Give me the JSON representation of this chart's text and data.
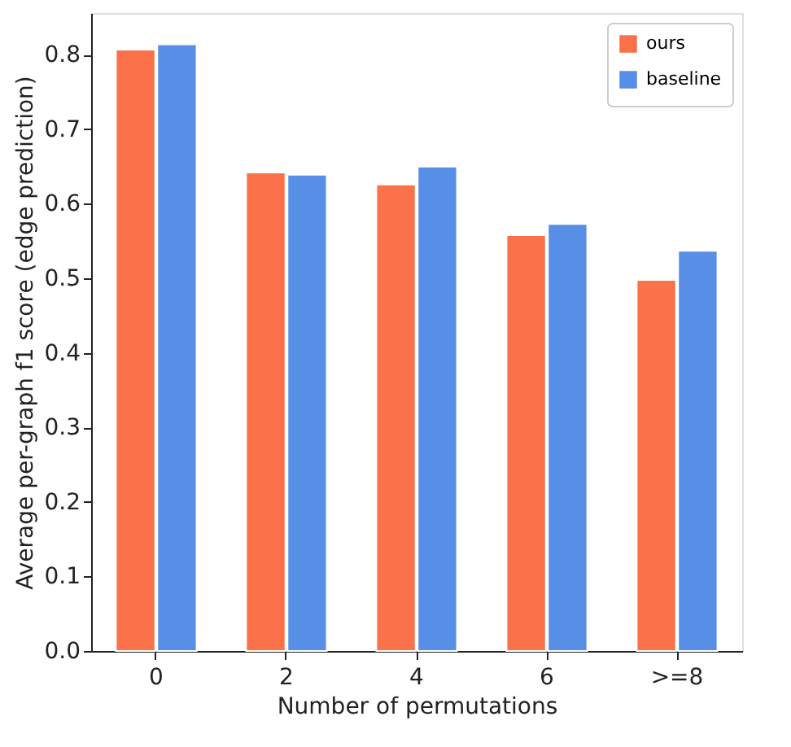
{
  "chart_data": {
    "type": "bar",
    "xlabel": "Number of permutations",
    "ylabel": "Average per-graph f1 score (edge prediction)",
    "categories": [
      "0",
      "2",
      "4",
      "6",
      ">=8"
    ],
    "series": [
      {
        "name": "ours",
        "color": "#fb714a",
        "values": [
          0.807,
          0.642,
          0.626,
          0.558,
          0.498
        ]
      },
      {
        "name": "baseline",
        "color": "#578ee6",
        "values": [
          0.814,
          0.639,
          0.65,
          0.573,
          0.537
        ]
      }
    ],
    "ylim": [
      0,
      0.856
    ],
    "yticks": [
      {
        "value": 0,
        "label": "0.0"
      },
      0.1,
      0.2,
      0.3,
      0.4,
      0.5,
      0.6,
      0.7,
      0.8
    ],
    "grid": false,
    "legend": "top right"
  }
}
